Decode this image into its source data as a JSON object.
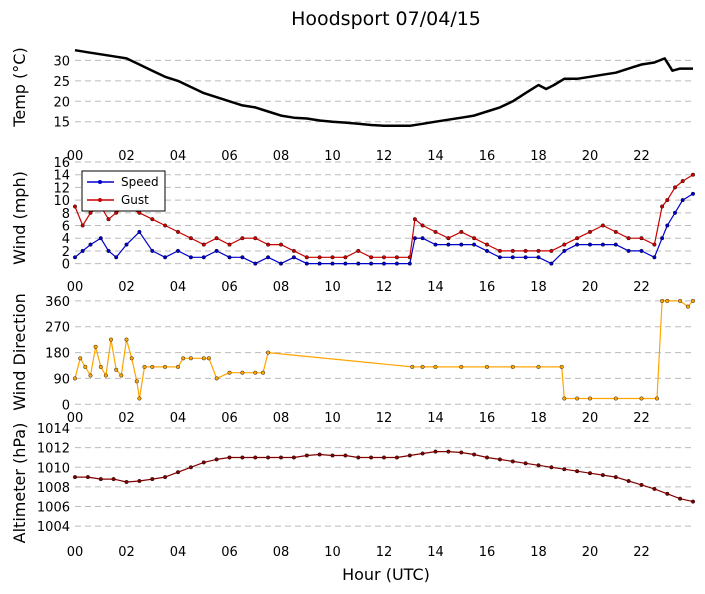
{
  "title": "Hoodsport 07/04/15",
  "xlabel": "Hour (UTC)",
  "x_tick_labels": [
    "00",
    "02",
    "04",
    "06",
    "08",
    "10",
    "12",
    "14",
    "16",
    "18",
    "20",
    "22"
  ],
  "colors": {
    "temp": "#000000",
    "speed": "#0000cc",
    "gust": "#cc0000",
    "direction": "#ffa500",
    "altimeter": "#800000",
    "grid": "#bbbbbb"
  },
  "chart_data": [
    {
      "type": "line",
      "ylabel": "Temp (°C)",
      "xlim": [
        0,
        24
      ],
      "ylim": [
        12,
        35
      ],
      "yticks": [
        15,
        20,
        25,
        30
      ],
      "grid": "horizontal dashed",
      "series": [
        {
          "x": [
            0,
            0.5,
            1,
            1.5,
            2,
            2.5,
            3,
            3.5,
            4,
            4.5,
            5,
            5.5,
            6,
            6.5,
            7,
            7.5,
            8,
            8.5,
            9,
            9.5,
            10,
            10.5,
            11,
            11.5,
            12,
            12.5,
            13,
            13.5,
            14,
            14.5,
            15,
            15.5,
            16,
            16.5,
            17,
            17.5,
            18,
            18.3,
            18.6,
            19,
            19.5,
            20,
            20.5,
            21,
            21.5,
            22,
            22.5,
            22.9,
            23.2,
            23.5,
            24
          ],
          "y": [
            32.5,
            32,
            31.5,
            31,
            30.5,
            29,
            27.5,
            26,
            25,
            23.5,
            22,
            21,
            20,
            19,
            18.5,
            17.5,
            16.5,
            16,
            15.8,
            15.3,
            15,
            14.8,
            14.5,
            14.2,
            14,
            14,
            14,
            14.5,
            15,
            15.5,
            16,
            16.5,
            17.5,
            18.5,
            20,
            22,
            24,
            23,
            24,
            25.5,
            25.5,
            26,
            26.5,
            27,
            28,
            29,
            29.5,
            30.5,
            27.5,
            28,
            28
          ]
        }
      ]
    },
    {
      "type": "line",
      "ylabel": "Wind (mph)",
      "xlim": [
        0,
        24
      ],
      "ylim": [
        -1,
        16
      ],
      "yticks": [
        0,
        2,
        4,
        6,
        8,
        10,
        12,
        14,
        16
      ],
      "grid": "horizontal dashed",
      "legend": {
        "position": "upper-left"
      },
      "series": [
        {
          "name": "Speed",
          "x": [
            0,
            0.3,
            0.6,
            1,
            1.3,
            1.6,
            2,
            2.5,
            3,
            3.5,
            4,
            4.5,
            5,
            5.5,
            6,
            6.5,
            7,
            7.5,
            8,
            8.5,
            9,
            9.5,
            10,
            10.5,
            11,
            11.5,
            12,
            12.5,
            13,
            13.2,
            13.5,
            14,
            14.5,
            15,
            15.5,
            16,
            16.5,
            17,
            17.5,
            18,
            18.5,
            19,
            19.5,
            20,
            20.5,
            21,
            21.5,
            22,
            22.5,
            22.8,
            23,
            23.3,
            23.6,
            24
          ],
          "y": [
            1,
            2,
            3,
            4,
            2,
            1,
            3,
            5,
            2,
            1,
            2,
            1,
            1,
            2,
            1,
            1,
            0,
            1,
            0,
            1,
            0,
            0,
            0,
            0,
            0,
            0,
            0,
            0,
            0,
            4,
            4,
            3,
            3,
            3,
            3,
            2,
            1,
            1,
            1,
            1,
            0,
            2,
            3,
            3,
            3,
            3,
            2,
            2,
            1,
            4,
            6,
            8,
            10,
            11
          ]
        },
        {
          "name": "Gust",
          "x": [
            0,
            0.3,
            0.6,
            1,
            1.3,
            1.6,
            2,
            2.5,
            3,
            3.5,
            4,
            4.5,
            5,
            5.5,
            6,
            6.5,
            7,
            7.5,
            8,
            8.5,
            9,
            9.5,
            10,
            10.5,
            11,
            11.5,
            12,
            12.5,
            13,
            13.2,
            13.5,
            14,
            14.5,
            15,
            15.5,
            16,
            16.5,
            17,
            17.5,
            18,
            18.5,
            19,
            19.5,
            20,
            20.5,
            21,
            21.5,
            22,
            22.5,
            22.8,
            23,
            23.3,
            23.6,
            24
          ],
          "y": [
            9,
            6,
            8,
            9,
            7,
            8,
            9,
            8,
            7,
            6,
            5,
            4,
            3,
            4,
            3,
            4,
            4,
            3,
            3,
            2,
            1,
            1,
            1,
            1,
            2,
            1,
            1,
            1,
            1,
            7,
            6,
            5,
            4,
            5,
            4,
            3,
            2,
            2,
            2,
            2,
            2,
            3,
            4,
            5,
            6,
            5,
            4,
            4,
            3,
            9,
            10,
            12,
            13,
            14
          ]
        }
      ]
    },
    {
      "type": "line",
      "ylabel": "Wind Direction",
      "xlim": [
        0,
        24
      ],
      "ylim": [
        -20,
        370
      ],
      "yticks": [
        0,
        90,
        180,
        270,
        360
      ],
      "grid": "horizontal dashed",
      "series": [
        {
          "x": [
            0,
            0.2,
            0.4,
            0.6,
            0.8,
            1,
            1.2,
            1.4,
            1.6,
            1.8,
            2,
            2.2,
            2.4,
            2.5,
            2.7,
            3,
            3.5,
            4,
            4.2,
            4.5,
            5,
            5.2,
            5.5,
            6,
            6.5,
            7,
            7.3,
            7.5,
            13.1,
            13.5,
            14,
            15,
            16,
            17,
            18,
            18.9,
            19,
            19.5,
            20,
            21,
            22,
            22.6,
            22.8,
            23,
            23.5,
            23.8,
            24
          ],
          "y": [
            90,
            160,
            130,
            100,
            200,
            130,
            100,
            225,
            120,
            100,
            225,
            160,
            80,
            20,
            130,
            130,
            130,
            130,
            160,
            160,
            160,
            160,
            90,
            110,
            110,
            110,
            110,
            180,
            130,
            130,
            130,
            130,
            130,
            130,
            130,
            130,
            20,
            20,
            20,
            20,
            20,
            20,
            360,
            360,
            360,
            340,
            360
          ]
        }
      ]
    },
    {
      "type": "line",
      "ylabel": "Altimeter (hPa)",
      "xlim": [
        0,
        24
      ],
      "ylim": [
        1003,
        1014
      ],
      "yticks": [
        1004,
        1006,
        1008,
        1010,
        1012,
        1014
      ],
      "grid": "horizontal dashed",
      "series": [
        {
          "x": [
            0,
            0.5,
            1,
            1.5,
            2,
            2.5,
            3,
            3.5,
            4,
            4.5,
            5,
            5.5,
            6,
            6.5,
            7,
            7.5,
            8,
            8.5,
            9,
            9.5,
            10,
            10.5,
            11,
            11.5,
            12,
            12.5,
            13,
            13.5,
            14,
            14.5,
            15,
            15.5,
            16,
            16.5,
            17,
            17.5,
            18,
            18.5,
            19,
            19.5,
            20,
            20.5,
            21,
            21.5,
            22,
            22.5,
            23,
            23.5,
            24
          ],
          "y": [
            1009,
            1009,
            1008.8,
            1008.8,
            1008.5,
            1008.6,
            1008.8,
            1009,
            1009.5,
            1010,
            1010.5,
            1010.8,
            1011,
            1011,
            1011,
            1011,
            1011,
            1011,
            1011.2,
            1011.3,
            1011.2,
            1011.2,
            1011,
            1011,
            1011,
            1011,
            1011.2,
            1011.4,
            1011.6,
            1011.6,
            1011.5,
            1011.3,
            1011,
            1010.8,
            1010.6,
            1010.4,
            1010.2,
            1010,
            1009.8,
            1009.6,
            1009.4,
            1009.2,
            1009,
            1008.6,
            1008.2,
            1007.8,
            1007.3,
            1006.8,
            1006.5
          ]
        }
      ]
    }
  ]
}
